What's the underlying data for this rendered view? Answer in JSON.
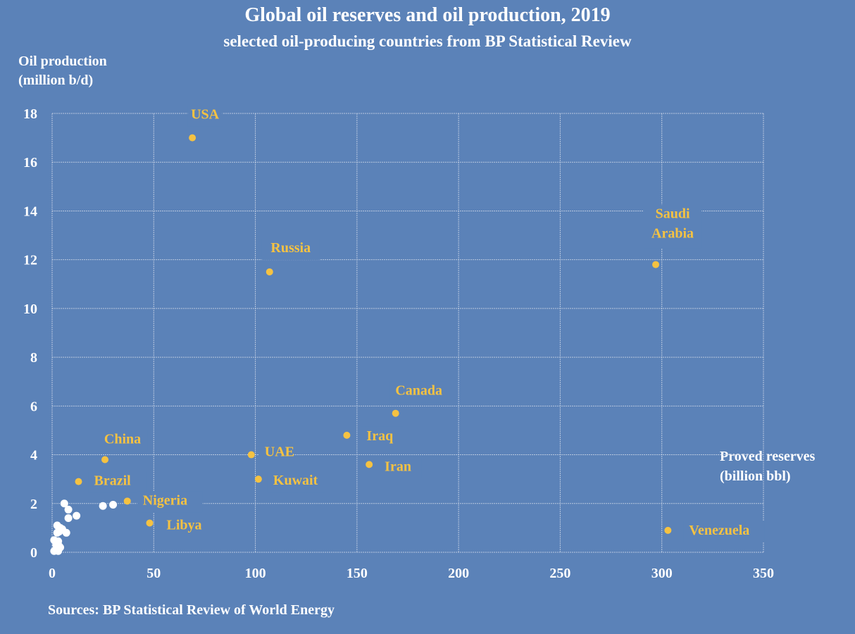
{
  "chart_data": {
    "type": "scatter",
    "title": "Global oil reserves and oil production, 2019",
    "subtitle": "selected oil-producing countries from BP Statistical Review",
    "ylabel_lines": [
      "Oil production",
      "(million b/d)"
    ],
    "xlabel_lines": [
      "Proved reserves",
      "(billion bbl)"
    ],
    "source": "Sources: BP Statistical Review of World Energy",
    "xlim": [
      0,
      350
    ],
    "ylim": [
      0,
      18
    ],
    "x_ticks": [
      0,
      50,
      100,
      150,
      200,
      250,
      300,
      350
    ],
    "y_ticks": [
      0,
      2,
      4,
      6,
      8,
      10,
      12,
      14,
      16,
      18
    ],
    "grid": true,
    "colors": {
      "background": "#5b82b8",
      "labeled": "#f5c242",
      "unlabeled": "#ffffff",
      "grid": "#c9d4e6"
    },
    "labeled_points": [
      {
        "name": "USA",
        "x": 69,
        "y": 17.0
      },
      {
        "name": "Russia",
        "x": 107,
        "y": 11.5
      },
      {
        "name": "Saudi Arabia",
        "label_lines": [
          "Saudi",
          "Arabia"
        ],
        "x": 297,
        "y": 11.8
      },
      {
        "name": "Canada",
        "x": 169,
        "y": 5.7
      },
      {
        "name": "Iraq",
        "x": 145,
        "y": 4.8
      },
      {
        "name": "Iran",
        "x": 156,
        "y": 3.6
      },
      {
        "name": "UAE",
        "x": 98,
        "y": 4.0
      },
      {
        "name": "Kuwait",
        "x": 101.5,
        "y": 3.0
      },
      {
        "name": "China",
        "x": 26,
        "y": 3.8
      },
      {
        "name": "Brazil",
        "x": 13,
        "y": 2.9
      },
      {
        "name": "Nigeria",
        "x": 37,
        "y": 2.1
      },
      {
        "name": "Libya",
        "x": 48,
        "y": 1.2
      },
      {
        "name": "Venezuela",
        "x": 303,
        "y": 0.9
      }
    ],
    "unlabeled_points": [
      {
        "x": 6,
        "y": 2.0
      },
      {
        "x": 8,
        "y": 1.75
      },
      {
        "x": 8,
        "y": 1.4
      },
      {
        "x": 12,
        "y": 1.5
      },
      {
        "x": 25,
        "y": 1.9
      },
      {
        "x": 30,
        "y": 1.95
      },
      {
        "x": 2.5,
        "y": 1.1
      },
      {
        "x": 4,
        "y": 1.0
      },
      {
        "x": 2.5,
        "y": 0.8
      },
      {
        "x": 5,
        "y": 0.95
      },
      {
        "x": 7,
        "y": 0.8
      },
      {
        "x": 3.5,
        "y": 0.85
      },
      {
        "x": 1,
        "y": 0.5
      },
      {
        "x": 3,
        "y": 0.45
      },
      {
        "x": 2,
        "y": 0.3
      },
      {
        "x": 3.5,
        "y": 0.25
      },
      {
        "x": 4,
        "y": 0.2
      },
      {
        "x": 1,
        "y": 0.05
      },
      {
        "x": 3,
        "y": 0.05
      },
      {
        "x": 2.5,
        "y": 0.15
      }
    ]
  }
}
